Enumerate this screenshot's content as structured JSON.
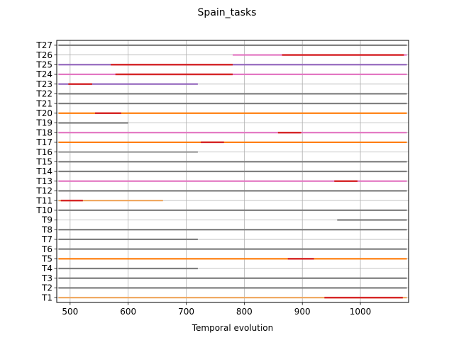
{
  "chart_data": {
    "type": "gantt",
    "title": "Spain_tasks",
    "xlabel": "Temporal evolution",
    "ylabel": "",
    "xlim": [
      477,
      1083
    ],
    "x_ticks": [
      500,
      600,
      700,
      800,
      900,
      1000
    ],
    "grid": true,
    "categories": [
      "T1",
      "T2",
      "T3",
      "T4",
      "T5",
      "T6",
      "T7",
      "T8",
      "T9",
      "T10",
      "T11",
      "T12",
      "T13",
      "T14",
      "T15",
      "T16",
      "T17",
      "T18",
      "T19",
      "T20",
      "T21",
      "T22",
      "T23",
      "T24",
      "T25",
      "T26",
      "T27"
    ],
    "tasks": [
      {
        "task": "T1",
        "segments": [
          {
            "start": 480,
            "end": 1080,
            "color": "#f0a860"
          },
          {
            "start": 938,
            "end": 1073,
            "color": "#d62728"
          }
        ]
      },
      {
        "task": "T2",
        "segments": [
          {
            "start": 480,
            "end": 1080,
            "color": "#7f7f7f"
          }
        ]
      },
      {
        "task": "T3",
        "segments": [
          {
            "start": 480,
            "end": 1080,
            "color": "#7f7f7f"
          }
        ]
      },
      {
        "task": "T4",
        "segments": [
          {
            "start": 480,
            "end": 720,
            "color": "#7f7f7f"
          }
        ]
      },
      {
        "task": "T5",
        "segments": [
          {
            "start": 480,
            "end": 1080,
            "color": "#ff7f0e"
          },
          {
            "start": 875,
            "end": 920,
            "color": "#d62728"
          }
        ]
      },
      {
        "task": "T6",
        "segments": [
          {
            "start": 480,
            "end": 1080,
            "color": "#7f7f7f"
          }
        ]
      },
      {
        "task": "T7",
        "segments": [
          {
            "start": 480,
            "end": 720,
            "color": "#7f7f7f"
          }
        ]
      },
      {
        "task": "T8",
        "segments": [
          {
            "start": 480,
            "end": 1080,
            "color": "#7f7f7f"
          }
        ]
      },
      {
        "task": "T9",
        "segments": [
          {
            "start": 960,
            "end": 1080,
            "color": "#7f7f7f"
          }
        ]
      },
      {
        "task": "T10",
        "segments": [
          {
            "start": 480,
            "end": 1080,
            "color": "#7f7f7f"
          }
        ]
      },
      {
        "task": "T11",
        "segments": [
          {
            "start": 480,
            "end": 660,
            "color": "#f0a860"
          },
          {
            "start": 484,
            "end": 522,
            "color": "#d62728"
          }
        ]
      },
      {
        "task": "T12",
        "segments": [
          {
            "start": 480,
            "end": 1080,
            "color": "#7f7f7f"
          }
        ]
      },
      {
        "task": "T13",
        "segments": [
          {
            "start": 480,
            "end": 1080,
            "color": "#e377c2"
          },
          {
            "start": 955,
            "end": 995,
            "color": "#d62728"
          }
        ]
      },
      {
        "task": "T14",
        "segments": [
          {
            "start": 480,
            "end": 1080,
            "color": "#7f7f7f"
          }
        ]
      },
      {
        "task": "T15",
        "segments": [
          {
            "start": 480,
            "end": 1080,
            "color": "#7f7f7f"
          }
        ]
      },
      {
        "task": "T16",
        "segments": [
          {
            "start": 480,
            "end": 720,
            "color": "#9a9a9a"
          }
        ]
      },
      {
        "task": "T17",
        "segments": [
          {
            "start": 480,
            "end": 1080,
            "color": "#ff7f0e"
          },
          {
            "start": 725,
            "end": 765,
            "color": "#d62728"
          }
        ]
      },
      {
        "task": "T18",
        "segments": [
          {
            "start": 480,
            "end": 1080,
            "color": "#e377c2"
          },
          {
            "start": 858,
            "end": 898,
            "color": "#d62728"
          }
        ]
      },
      {
        "task": "T19",
        "segments": [
          {
            "start": 480,
            "end": 600,
            "color": "#7f7f7f"
          }
        ]
      },
      {
        "task": "T20",
        "segments": [
          {
            "start": 480,
            "end": 1080,
            "color": "#ff7f0e"
          },
          {
            "start": 543,
            "end": 588,
            "color": "#d62728"
          }
        ]
      },
      {
        "task": "T21",
        "segments": [
          {
            "start": 480,
            "end": 1080,
            "color": "#7f7f7f"
          }
        ]
      },
      {
        "task": "T22",
        "segments": [
          {
            "start": 480,
            "end": 1080,
            "color": "#7f7f7f"
          }
        ]
      },
      {
        "task": "T23",
        "segments": [
          {
            "start": 480,
            "end": 720,
            "color": "#9467bd"
          },
          {
            "start": 497,
            "end": 538,
            "color": "#d62728"
          }
        ]
      },
      {
        "task": "T24",
        "segments": [
          {
            "start": 480,
            "end": 1080,
            "color": "#e377c2"
          },
          {
            "start": 578,
            "end": 780,
            "color": "#d62728"
          }
        ]
      },
      {
        "task": "T25",
        "segments": [
          {
            "start": 480,
            "end": 1080,
            "color": "#9467bd"
          },
          {
            "start": 570,
            "end": 780,
            "color": "#d62728"
          }
        ]
      },
      {
        "task": "T26",
        "segments": [
          {
            "start": 780,
            "end": 1080,
            "color": "#e377c2"
          },
          {
            "start": 865,
            "end": 1075,
            "color": "#d62728"
          }
        ]
      },
      {
        "task": "T27",
        "segments": [
          {
            "start": 480,
            "end": 1080,
            "color": "#7f7f7f"
          }
        ]
      }
    ]
  }
}
